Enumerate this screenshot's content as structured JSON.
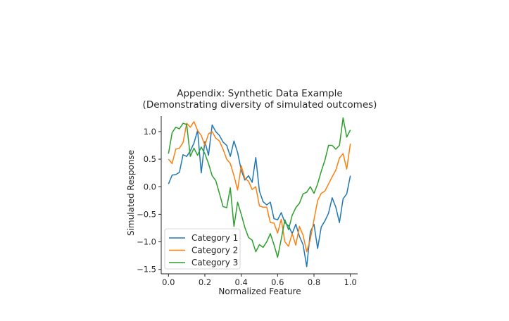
{
  "chart_data": {
    "type": "line",
    "title": "Appendix: Synthetic Data Example",
    "subtitle": "(Demonstrating diversity of simulated outcomes)",
    "xlabel": "Normalized Feature",
    "ylabel": "Simulated Response",
    "xlim": [
      -0.04,
      1.04
    ],
    "ylim": [
      -1.58,
      1.28
    ],
    "xticks": [
      0.0,
      0.2,
      0.4,
      0.6,
      0.8,
      1.0
    ],
    "xtick_labels": [
      "0.0",
      "0.2",
      "0.4",
      "0.6",
      "0.8",
      "1.0"
    ],
    "yticks": [
      -1.5,
      -1.0,
      -0.5,
      0.0,
      0.5,
      1.0
    ],
    "ytick_labels": [
      "−1.5",
      "−1.0",
      "−0.5",
      "0.0",
      "0.5",
      "1.0"
    ],
    "grid": false,
    "legend_position": "lower-left",
    "series": [
      {
        "name": "Category 1",
        "color": "#1f77b4",
        "points": [
          [
            0.0,
            0.05
          ],
          [
            0.02,
            0.21
          ],
          [
            0.04,
            0.22
          ],
          [
            0.06,
            0.26
          ],
          [
            0.08,
            0.58
          ],
          [
            0.1,
            0.55
          ],
          [
            0.12,
            0.65
          ],
          [
            0.14,
            0.79
          ],
          [
            0.16,
            1.02
          ],
          [
            0.18,
            0.25
          ],
          [
            0.2,
            0.82
          ],
          [
            0.22,
            0.57
          ],
          [
            0.24,
            1.12
          ],
          [
            0.26,
            1.0
          ],
          [
            0.28,
            0.93
          ],
          [
            0.3,
            0.81
          ],
          [
            0.32,
            0.75
          ],
          [
            0.34,
            0.55
          ],
          [
            0.36,
            0.83
          ],
          [
            0.38,
            0.62
          ],
          [
            0.4,
            0.3
          ],
          [
            0.42,
            0.12
          ],
          [
            0.44,
            0.2
          ],
          [
            0.46,
            0.08
          ],
          [
            0.48,
            0.53
          ],
          [
            0.5,
            -0.08
          ],
          [
            0.52,
            -0.27
          ],
          [
            0.54,
            -0.33
          ],
          [
            0.56,
            -0.28
          ],
          [
            0.58,
            -0.58
          ],
          [
            0.6,
            -0.6
          ],
          [
            0.62,
            -0.47
          ],
          [
            0.64,
            -0.65
          ],
          [
            0.66,
            -0.71
          ],
          [
            0.68,
            -0.85
          ],
          [
            0.7,
            -0.68
          ],
          [
            0.72,
            -0.9
          ],
          [
            0.74,
            -1.05
          ],
          [
            0.76,
            -1.45
          ],
          [
            0.78,
            -0.82
          ],
          [
            0.8,
            -0.68
          ],
          [
            0.82,
            -1.12
          ],
          [
            0.84,
            -0.73
          ],
          [
            0.86,
            -0.62
          ],
          [
            0.88,
            -0.48
          ],
          [
            0.9,
            -0.2
          ],
          [
            0.92,
            -0.37
          ],
          [
            0.94,
            -0.65
          ],
          [
            0.96,
            -0.22
          ],
          [
            0.98,
            -0.13
          ],
          [
            1.0,
            0.2
          ]
        ]
      },
      {
        "name": "Category 2",
        "color": "#ff7f0e",
        "points": [
          [
            0.0,
            0.5
          ],
          [
            0.02,
            0.42
          ],
          [
            0.04,
            0.68
          ],
          [
            0.06,
            0.7
          ],
          [
            0.08,
            0.8
          ],
          [
            0.1,
            1.15
          ],
          [
            0.12,
            1.08
          ],
          [
            0.14,
            1.18
          ],
          [
            0.16,
            1.02
          ],
          [
            0.18,
            0.93
          ],
          [
            0.2,
            0.75
          ],
          [
            0.22,
            0.96
          ],
          [
            0.24,
            1.0
          ],
          [
            0.26,
            0.88
          ],
          [
            0.28,
            0.83
          ],
          [
            0.3,
            0.68
          ],
          [
            0.32,
            0.5
          ],
          [
            0.34,
            0.42
          ],
          [
            0.36,
            0.2
          ],
          [
            0.38,
            -0.06
          ],
          [
            0.4,
            0.38
          ],
          [
            0.42,
            0.15
          ],
          [
            0.44,
            0.1
          ],
          [
            0.46,
            -0.05
          ],
          [
            0.48,
            0.0
          ],
          [
            0.5,
            -0.35
          ],
          [
            0.52,
            -0.37
          ],
          [
            0.54,
            -0.37
          ],
          [
            0.56,
            -0.65
          ],
          [
            0.58,
            -0.66
          ],
          [
            0.6,
            -0.84
          ],
          [
            0.62,
            -0.59
          ],
          [
            0.64,
            -1.0
          ],
          [
            0.66,
            -1.08
          ],
          [
            0.68,
            -0.85
          ],
          [
            0.7,
            -1.06
          ],
          [
            0.72,
            -0.72
          ],
          [
            0.74,
            -0.88
          ],
          [
            0.76,
            -1.18
          ],
          [
            0.78,
            -0.95
          ],
          [
            0.8,
            -0.6
          ],
          [
            0.82,
            -0.25
          ],
          [
            0.84,
            -0.12
          ],
          [
            0.86,
            -0.08
          ],
          [
            0.88,
            0.05
          ],
          [
            0.9,
            0.18
          ],
          [
            0.92,
            0.3
          ],
          [
            0.94,
            0.52
          ],
          [
            0.96,
            0.6
          ],
          [
            0.98,
            0.32
          ],
          [
            1.0,
            0.78
          ]
        ]
      },
      {
        "name": "Category 3",
        "color": "#2ca02c",
        "points": [
          [
            0.0,
            0.6
          ],
          [
            0.02,
            0.98
          ],
          [
            0.04,
            1.08
          ],
          [
            0.06,
            1.05
          ],
          [
            0.08,
            1.15
          ],
          [
            0.1,
            1.13
          ],
          [
            0.12,
            0.55
          ],
          [
            0.14,
            0.7
          ],
          [
            0.16,
            0.57
          ],
          [
            0.18,
            0.72
          ],
          [
            0.2,
            0.6
          ],
          [
            0.22,
            0.42
          ],
          [
            0.24,
            0.2
          ],
          [
            0.26,
            0.11
          ],
          [
            0.28,
            -0.12
          ],
          [
            0.3,
            -0.36
          ],
          [
            0.32,
            -0.38
          ],
          [
            0.34,
            -0.02
          ],
          [
            0.36,
            -0.72
          ],
          [
            0.38,
            -0.28
          ],
          [
            0.4,
            -0.5
          ],
          [
            0.42,
            -0.74
          ],
          [
            0.44,
            -0.92
          ],
          [
            0.46,
            -0.97
          ],
          [
            0.48,
            -1.18
          ],
          [
            0.5,
            -1.05
          ],
          [
            0.52,
            -1.1
          ],
          [
            0.54,
            -1.0
          ],
          [
            0.56,
            -0.85
          ],
          [
            0.58,
            -1.05
          ],
          [
            0.6,
            -1.28
          ],
          [
            0.62,
            -0.95
          ],
          [
            0.64,
            -0.6
          ],
          [
            0.66,
            -0.78
          ],
          [
            0.68,
            -0.52
          ],
          [
            0.7,
            -0.38
          ],
          [
            0.72,
            -0.3
          ],
          [
            0.74,
            -0.13
          ],
          [
            0.76,
            -0.1
          ],
          [
            0.78,
            0.0
          ],
          [
            0.8,
            -0.12
          ],
          [
            0.82,
            0.05
          ],
          [
            0.84,
            0.28
          ],
          [
            0.86,
            0.48
          ],
          [
            0.88,
            0.75
          ],
          [
            0.9,
            0.75
          ],
          [
            0.92,
            0.68
          ],
          [
            0.94,
            0.75
          ],
          [
            0.96,
            1.25
          ],
          [
            0.98,
            0.9
          ],
          [
            1.0,
            1.03
          ]
        ]
      }
    ]
  }
}
